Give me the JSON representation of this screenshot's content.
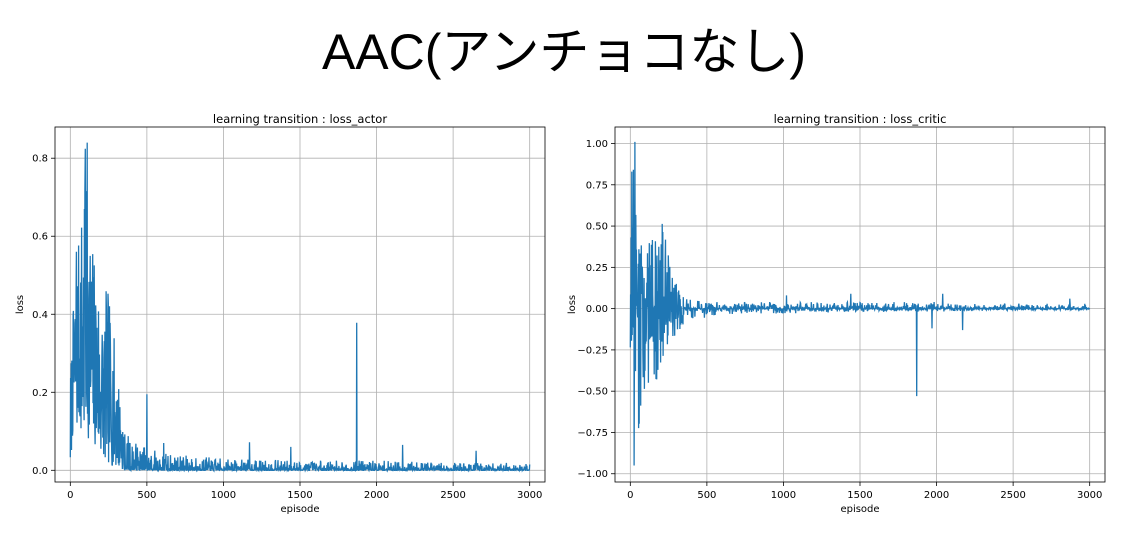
{
  "page": {
    "title": "AAC(アンチョコなし)"
  },
  "chart_data": [
    {
      "type": "line",
      "title": "learning transition : loss_actor",
      "xlabel": "episode",
      "ylabel": "loss",
      "xlim": [
        -100,
        3100
      ],
      "ylim": [
        -0.03,
        0.88
      ],
      "grid": true,
      "line_color": "#1f77b4",
      "x_ticks": [
        0,
        500,
        1000,
        1500,
        2000,
        2500,
        3000
      ],
      "x_tick_labels": [
        "0",
        "500",
        "1000",
        "1500",
        "2000",
        "2500",
        "3000"
      ],
      "y_ticks": [
        0.0,
        0.2,
        0.4,
        0.6,
        0.8
      ],
      "y_tick_labels": [
        "0.0",
        "0.2",
        "0.4",
        "0.6",
        "0.8"
      ],
      "episodes": 3000,
      "envelope": {
        "x": [
          0,
          20,
          40,
          60,
          80,
          100,
          120,
          140,
          160,
          180,
          200,
          220,
          240,
          260,
          280,
          300,
          320,
          340,
          360,
          400,
          500,
          700,
          1000,
          1500,
          2000,
          2500,
          3000
        ],
        "low": [
          0.0,
          0.12,
          0.1,
          0.13,
          0.05,
          0.1,
          0.08,
          0.07,
          0.06,
          0.05,
          0.04,
          0.03,
          0.02,
          0.015,
          0.01,
          0.008,
          0.005,
          0.003,
          0.002,
          0.001,
          0.0,
          0.0,
          0.0,
          0.0,
          0.0,
          0.0,
          0.0
        ],
        "high": [
          0.25,
          0.42,
          0.56,
          0.6,
          0.72,
          0.84,
          0.68,
          0.6,
          0.55,
          0.5,
          0.42,
          0.42,
          0.48,
          0.42,
          0.36,
          0.3,
          0.22,
          0.14,
          0.1,
          0.08,
          0.06,
          0.04,
          0.03,
          0.025,
          0.025,
          0.02,
          0.02
        ]
      },
      "spikes": [
        {
          "x": 110,
          "y": 0.84
        },
        {
          "x": 95,
          "y": 0.72
        },
        {
          "x": 40,
          "y": 0.56
        },
        {
          "x": 500,
          "y": 0.195
        },
        {
          "x": 1870,
          "y": 0.378
        },
        {
          "x": 2170,
          "y": 0.065
        },
        {
          "x": 1170,
          "y": 0.072
        },
        {
          "x": 1440,
          "y": 0.06
        },
        {
          "x": 610,
          "y": 0.07
        },
        {
          "x": 2650,
          "y": 0.05
        }
      ]
    },
    {
      "type": "line",
      "title": "learning transition : loss_critic",
      "xlabel": "episode",
      "ylabel": "loss",
      "xlim": [
        -100,
        3100
      ],
      "ylim": [
        -1.05,
        1.1
      ],
      "grid": true,
      "line_color": "#1f77b4",
      "x_ticks": [
        0,
        500,
        1000,
        1500,
        2000,
        2500,
        3000
      ],
      "x_tick_labels": [
        "0",
        "500",
        "1000",
        "1500",
        "2000",
        "2500",
        "3000"
      ],
      "y_ticks": [
        -1.0,
        -0.75,
        -0.5,
        -0.25,
        0.0,
        0.25,
        0.5,
        0.75,
        1.0
      ],
      "y_tick_labels": [
        "−1.00",
        "−0.75",
        "−0.50",
        "−0.25",
        "0.00",
        "0.25",
        "0.50",
        "0.75",
        "1.00"
      ],
      "episodes": 3000,
      "envelope": {
        "x": [
          0,
          20,
          40,
          60,
          80,
          100,
          150,
          200,
          250,
          300,
          350,
          400,
          500,
          700,
          1000,
          1500,
          2000,
          2500,
          3000
        ],
        "low": [
          -0.6,
          -0.95,
          -0.55,
          -0.85,
          -0.5,
          -0.5,
          -0.45,
          -0.45,
          -0.25,
          -0.2,
          -0.12,
          -0.08,
          -0.05,
          -0.03,
          -0.03,
          -0.02,
          -0.02,
          -0.01,
          -0.01
        ],
        "high": [
          0.83,
          1.01,
          0.6,
          0.42,
          0.4,
          0.52,
          0.42,
          0.55,
          0.35,
          0.15,
          0.08,
          0.06,
          0.05,
          0.04,
          0.04,
          0.04,
          0.04,
          0.03,
          0.03
        ]
      },
      "spikes": [
        {
          "x": 30,
          "y": 1.01
        },
        {
          "x": 25,
          "y": -0.95
        },
        {
          "x": 10,
          "y": 0.83
        },
        {
          "x": 1870,
          "y": -0.53
        },
        {
          "x": 1440,
          "y": 0.09
        },
        {
          "x": 2040,
          "y": 0.09
        },
        {
          "x": 2170,
          "y": -0.13
        },
        {
          "x": 1020,
          "y": 0.08
        },
        {
          "x": 2870,
          "y": 0.06
        },
        {
          "x": 1970,
          "y": -0.12
        }
      ]
    }
  ]
}
